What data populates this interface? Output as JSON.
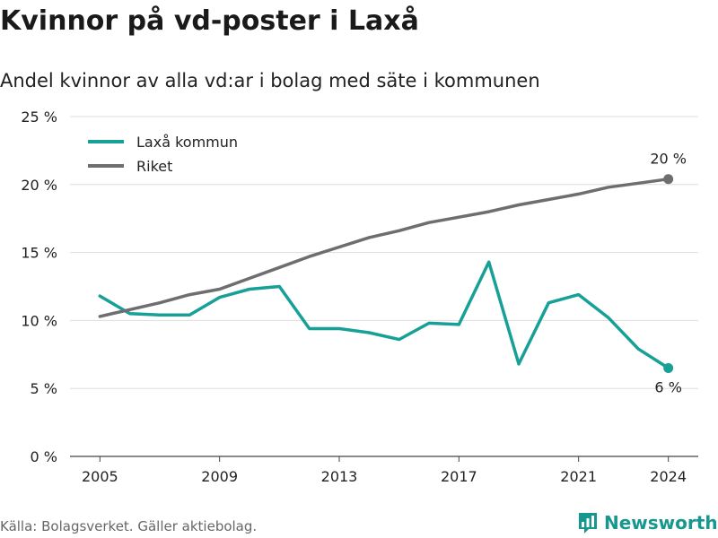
{
  "title": "Kvinnor på vd-poster i Laxå",
  "subtitle": "Andel kvinnor av alla vd:ar i bolag med säte i kommunen",
  "source": "Källa: Bolagsverket. Gäller aktiebolag.",
  "brand": {
    "name": "Newsworthy",
    "icon": "bar-chart-logo-icon",
    "color": "#17988f"
  },
  "chart_data": {
    "type": "line",
    "x": [
      2005,
      2006,
      2007,
      2008,
      2009,
      2010,
      2011,
      2012,
      2013,
      2014,
      2015,
      2016,
      2017,
      2018,
      2019,
      2020,
      2021,
      2022,
      2023,
      2024
    ],
    "series": [
      {
        "name": "Laxå kommun",
        "color": "#17a097",
        "values": [
          11.8,
          10.5,
          10.4,
          10.4,
          11.7,
          12.3,
          12.5,
          9.4,
          9.4,
          9.1,
          8.6,
          9.8,
          9.7,
          14.3,
          6.8,
          11.3,
          11.9,
          10.2,
          7.9,
          6.5
        ]
      },
      {
        "name": "Riket",
        "color": "#6e6e70",
        "values": [
          10.3,
          10.8,
          11.3,
          11.9,
          12.3,
          13.1,
          13.9,
          14.7,
          15.4,
          16.1,
          16.6,
          17.2,
          17.6,
          18.0,
          18.5,
          18.9,
          19.3,
          19.8,
          20.1,
          20.4
        ]
      }
    ],
    "end_labels": [
      {
        "series": "Riket",
        "text": "20 %"
      },
      {
        "series": "Laxå kommun",
        "text": "6 %"
      }
    ],
    "yticks": [
      0,
      5,
      10,
      15,
      20,
      25
    ],
    "ytick_labels": [
      "0 %",
      "5 %",
      "10 %",
      "15 %",
      "20 %",
      "25 %"
    ],
    "xticks": [
      2005,
      2009,
      2013,
      2017,
      2021,
      2024
    ],
    "xtick_labels": [
      "2005",
      "2009",
      "2013",
      "2017",
      "2021",
      "2024"
    ],
    "ylim": [
      0,
      25
    ],
    "xlim": [
      2004,
      2025
    ],
    "grid": "horizontal",
    "legend_position": "top-left"
  }
}
